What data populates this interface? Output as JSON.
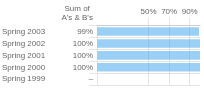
{
  "chart_data": {
    "type": "bar",
    "orientation": "horizontal",
    "categories": [
      "Spring 2003",
      "Spring 2002",
      "Spring 2001",
      "Spring 2000",
      "Spring 1999"
    ],
    "values": [
      99,
      100,
      100,
      100,
      0
    ],
    "value_labels": [
      "99%",
      "100%",
      "100%",
      "100%",
      "–"
    ],
    "data_labels": true,
    "annotations": [
      "Sum of\nA's & B's"
    ],
    "xlim": [
      0,
      100
    ],
    "xticks": [
      {
        "value": 50,
        "label": "50%"
      },
      {
        "value": 70,
        "label": "70%"
      },
      {
        "value": 90,
        "label": "90%"
      }
    ],
    "grid": true
  }
}
